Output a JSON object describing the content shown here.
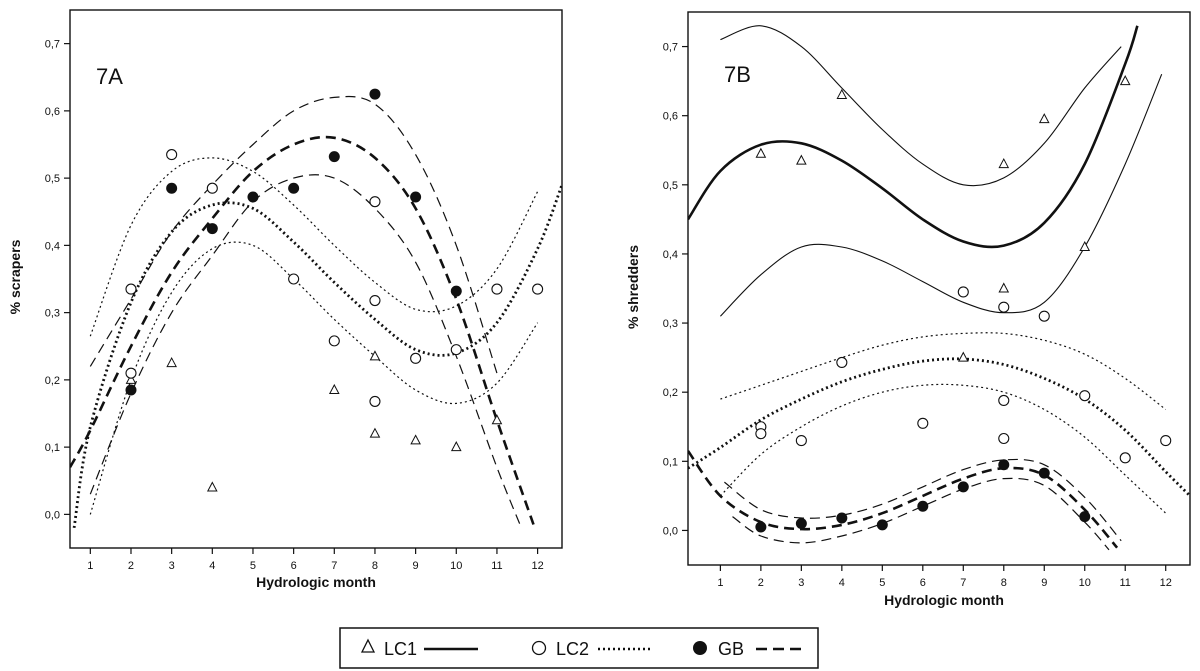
{
  "chart_data": [
    {
      "type": "scatter",
      "panel_label": "7A",
      "xlabel": "Hydrologic month",
      "ylabel": "% scrapers",
      "xlim": [
        0.5,
        12.6
      ],
      "ylim": [
        -0.05,
        0.75
      ],
      "xticks": [
        1,
        2,
        3,
        4,
        5,
        6,
        7,
        8,
        9,
        10,
        11,
        12
      ],
      "yticks": [
        "0,0",
        "0,1",
        "0,2",
        "0,3",
        "0,4",
        "0,5",
        "0,6",
        "0,7"
      ],
      "series": [
        {
          "name": "LC1",
          "marker": "triangle",
          "x": [
            2,
            3,
            4,
            7,
            8,
            8,
            9,
            10,
            11
          ],
          "y": [
            0.2,
            0.225,
            0.04,
            0.185,
            0.235,
            0.12,
            0.11,
            0.1,
            0.14
          ]
        },
        {
          "name": "LC2",
          "marker": "open-circle",
          "x": [
            2,
            2,
            3,
            4,
            6,
            7,
            8,
            8,
            8,
            9,
            10,
            11,
            12
          ],
          "y": [
            0.335,
            0.21,
            0.535,
            0.485,
            0.35,
            0.258,
            0.465,
            0.318,
            0.168,
            0.232,
            0.245,
            0.335,
            0.335
          ]
        },
        {
          "name": "GB",
          "marker": "filled-circle",
          "x": [
            2,
            3,
            4,
            5,
            6,
            7,
            8,
            9,
            10
          ],
          "y": [
            0.185,
            0.485,
            0.425,
            0.472,
            0.485,
            0.532,
            0.625,
            0.472,
            0.332
          ]
        }
      ],
      "fits": [
        {
          "series": "LC2",
          "style": "dotted",
          "mean": [
            [
              0.6,
              -0.02
            ],
            [
              1,
              0.13
            ],
            [
              2,
              0.315
            ],
            [
              3,
              0.42
            ],
            [
              4,
              0.46
            ],
            [
              5,
              0.455
            ],
            [
              6,
              0.405
            ],
            [
              7,
              0.345
            ],
            [
              8,
              0.29
            ],
            [
              9,
              0.245
            ],
            [
              10,
              0.24
            ],
            [
              11,
              0.285
            ],
            [
              12,
              0.395
            ],
            [
              12.6,
              0.49
            ]
          ],
          "upper": [
            [
              1,
              0.265
            ],
            [
              2,
              0.43
            ],
            [
              3,
              0.51
            ],
            [
              4,
              0.53
            ],
            [
              5,
              0.51
            ],
            [
              6,
              0.46
            ],
            [
              7,
              0.4
            ],
            [
              8,
              0.345
            ],
            [
              9,
              0.305
            ],
            [
              10,
              0.31
            ],
            [
              11,
              0.365
            ],
            [
              12,
              0.48
            ]
          ],
          "lower": [
            [
              1,
              0.0
            ],
            [
              2,
              0.2
            ],
            [
              3,
              0.33
            ],
            [
              4,
              0.395
            ],
            [
              5,
              0.4
            ],
            [
              6,
              0.35
            ],
            [
              7,
              0.29
            ],
            [
              8,
              0.235
            ],
            [
              9,
              0.185
            ],
            [
              10,
              0.165
            ],
            [
              11,
              0.195
            ],
            [
              12,
              0.285
            ]
          ]
        },
        {
          "series": "GB",
          "style": "dashed",
          "mean": [
            [
              0.5,
              0.07
            ],
            [
              1,
              0.125
            ],
            [
              2,
              0.25
            ],
            [
              3,
              0.36
            ],
            [
              4,
              0.44
            ],
            [
              5,
              0.51
            ],
            [
              6,
              0.55
            ],
            [
              7,
              0.56
            ],
            [
              8,
              0.53
            ],
            [
              9,
              0.455
            ],
            [
              10,
              0.32
            ],
            [
              11,
              0.14
            ],
            [
              11.9,
              -0.015
            ]
          ],
          "upper": [
            [
              1,
              0.22
            ],
            [
              2,
              0.32
            ],
            [
              3,
              0.42
            ],
            [
              4,
              0.49
            ],
            [
              5,
              0.55
            ],
            [
              6,
              0.6
            ],
            [
              7,
              0.62
            ],
            [
              8,
              0.61
            ],
            [
              9,
              0.535
            ],
            [
              10,
              0.4
            ],
            [
              11,
              0.21
            ]
          ],
          "lower": [
            [
              1,
              0.03
            ],
            [
              2,
              0.18
            ],
            [
              3,
              0.3
            ],
            [
              4,
              0.385
            ],
            [
              5,
              0.465
            ],
            [
              6,
              0.5
            ],
            [
              7,
              0.5
            ],
            [
              8,
              0.455
            ],
            [
              9,
              0.375
            ],
            [
              10,
              0.235
            ],
            [
              11,
              0.07
            ],
            [
              11.6,
              -0.02
            ]
          ]
        }
      ]
    },
    {
      "type": "scatter",
      "panel_label": "7B",
      "xlabel": "Hydrologic month",
      "ylabel": "% shredders",
      "xlim": [
        0.2,
        12.6
      ],
      "ylim": [
        -0.05,
        0.75
      ],
      "xticks": [
        1,
        2,
        3,
        4,
        5,
        6,
        7,
        8,
        9,
        10,
        11,
        12
      ],
      "yticks": [
        "0,0",
        "0,1",
        "0,2",
        "0,3",
        "0,4",
        "0,5",
        "0,6",
        "0,7"
      ],
      "series": [
        {
          "name": "LC1",
          "marker": "triangle",
          "x": [
            2,
            3,
            4,
            7,
            8,
            8,
            9,
            10,
            11
          ],
          "y": [
            0.545,
            0.535,
            0.63,
            0.25,
            0.53,
            0.35,
            0.595,
            0.41,
            0.65
          ]
        },
        {
          "name": "LC2",
          "marker": "open-circle",
          "x": [
            2,
            2,
            3,
            4,
            6,
            7,
            8,
            8,
            8,
            9,
            10,
            11,
            12
          ],
          "y": [
            0.15,
            0.14,
            0.13,
            0.243,
            0.155,
            0.345,
            0.323,
            0.188,
            0.133,
            0.31,
            0.195,
            0.105,
            0.13
          ]
        },
        {
          "name": "GB",
          "marker": "filled-circle",
          "x": [
            2,
            3,
            4,
            5,
            6,
            7,
            8,
            9,
            10
          ],
          "y": [
            0.005,
            0.01,
            0.018,
            0.008,
            0.035,
            0.063,
            0.095,
            0.083,
            0.02
          ]
        }
      ],
      "fits": [
        {
          "series": "LC1",
          "style": "solid",
          "mean": [
            [
              0.2,
              0.45
            ],
            [
              1,
              0.52
            ],
            [
              2,
              0.558
            ],
            [
              3,
              0.56
            ],
            [
              4,
              0.535
            ],
            [
              5,
              0.495
            ],
            [
              6,
              0.45
            ],
            [
              7,
              0.418
            ],
            [
              8,
              0.412
            ],
            [
              9,
              0.445
            ],
            [
              10,
              0.53
            ],
            [
              11,
              0.675
            ],
            [
              11.3,
              0.73
            ]
          ],
          "upper": [
            [
              1,
              0.71
            ],
            [
              2,
              0.73
            ],
            [
              3,
              0.7
            ],
            [
              4,
              0.64
            ],
            [
              5,
              0.58
            ],
            [
              6,
              0.53
            ],
            [
              7,
              0.5
            ],
            [
              8,
              0.51
            ],
            [
              9,
              0.56
            ],
            [
              10,
              0.64
            ],
            [
              10.9,
              0.7
            ]
          ],
          "lower": [
            [
              1,
              0.31
            ],
            [
              2,
              0.37
            ],
            [
              3,
              0.41
            ],
            [
              4,
              0.41
            ],
            [
              5,
              0.39
            ],
            [
              6,
              0.36
            ],
            [
              7,
              0.33
            ],
            [
              8,
              0.315
            ],
            [
              9,
              0.33
            ],
            [
              10,
              0.41
            ],
            [
              11,
              0.53
            ],
            [
              11.9,
              0.66
            ]
          ]
        },
        {
          "series": "LC2",
          "style": "dotted",
          "mean": [
            [
              0.2,
              0.09
            ],
            [
              1,
              0.12
            ],
            [
              2,
              0.16
            ],
            [
              3,
              0.19
            ],
            [
              4,
              0.215
            ],
            [
              5,
              0.233
            ],
            [
              6,
              0.245
            ],
            [
              7,
              0.248
            ],
            [
              8,
              0.24
            ],
            [
              9,
              0.22
            ],
            [
              10,
              0.19
            ],
            [
              11,
              0.145
            ],
            [
              12,
              0.085
            ],
            [
              12.6,
              0.05
            ]
          ],
          "upper": [
            [
              1,
              0.19
            ],
            [
              2,
              0.21
            ],
            [
              3,
              0.23
            ],
            [
              4,
              0.25
            ],
            [
              5,
              0.268
            ],
            [
              6,
              0.28
            ],
            [
              7,
              0.285
            ],
            [
              8,
              0.285
            ],
            [
              9,
              0.275
            ],
            [
              10,
              0.255
            ],
            [
              11,
              0.22
            ],
            [
              12,
              0.175
            ]
          ],
          "lower": [
            [
              1,
              0.05
            ],
            [
              2,
              0.11
            ],
            [
              3,
              0.15
            ],
            [
              4,
              0.18
            ],
            [
              5,
              0.2
            ],
            [
              6,
              0.21
            ],
            [
              7,
              0.21
            ],
            [
              8,
              0.2
            ],
            [
              9,
              0.175
            ],
            [
              10,
              0.135
            ],
            [
              11,
              0.08
            ],
            [
              12,
              0.025
            ]
          ]
        },
        {
          "series": "GB",
          "style": "dashed",
          "mean": [
            [
              0.2,
              0.115
            ],
            [
              1,
              0.05
            ],
            [
              2,
              0.012
            ],
            [
              3,
              0.002
            ],
            [
              4,
              0.008
            ],
            [
              5,
              0.025
            ],
            [
              6,
              0.05
            ],
            [
              7,
              0.075
            ],
            [
              8,
              0.09
            ],
            [
              9,
              0.08
            ],
            [
              10,
              0.03
            ],
            [
              10.8,
              -0.025
            ]
          ],
          "upper": [
            [
              1.1,
              0.07
            ],
            [
              2,
              0.03
            ],
            [
              3,
              0.018
            ],
            [
              4,
              0.022
            ],
            [
              5,
              0.038
            ],
            [
              6,
              0.063
            ],
            [
              7,
              0.088
            ],
            [
              8,
              0.102
            ],
            [
              9,
              0.095
            ],
            [
              10,
              0.048
            ],
            [
              10.9,
              -0.015
            ]
          ],
          "lower": [
            [
              1.3,
              0.02
            ],
            [
              2,
              -0.008
            ],
            [
              3,
              -0.018
            ],
            [
              4,
              -0.008
            ],
            [
              5,
              0.01
            ],
            [
              6,
              0.035
            ],
            [
              7,
              0.06
            ],
            [
              8,
              0.075
            ],
            [
              9,
              0.065
            ],
            [
              10,
              0.012
            ],
            [
              10.6,
              -0.028
            ]
          ]
        }
      ]
    }
  ],
  "legend": {
    "entries": [
      {
        "label": "LC1",
        "marker": "triangle",
        "line": "solid"
      },
      {
        "label": "LC2",
        "marker": "open-circle",
        "line": "dotted"
      },
      {
        "label": "GB",
        "marker": "filled-circle",
        "line": "dashed"
      }
    ]
  }
}
